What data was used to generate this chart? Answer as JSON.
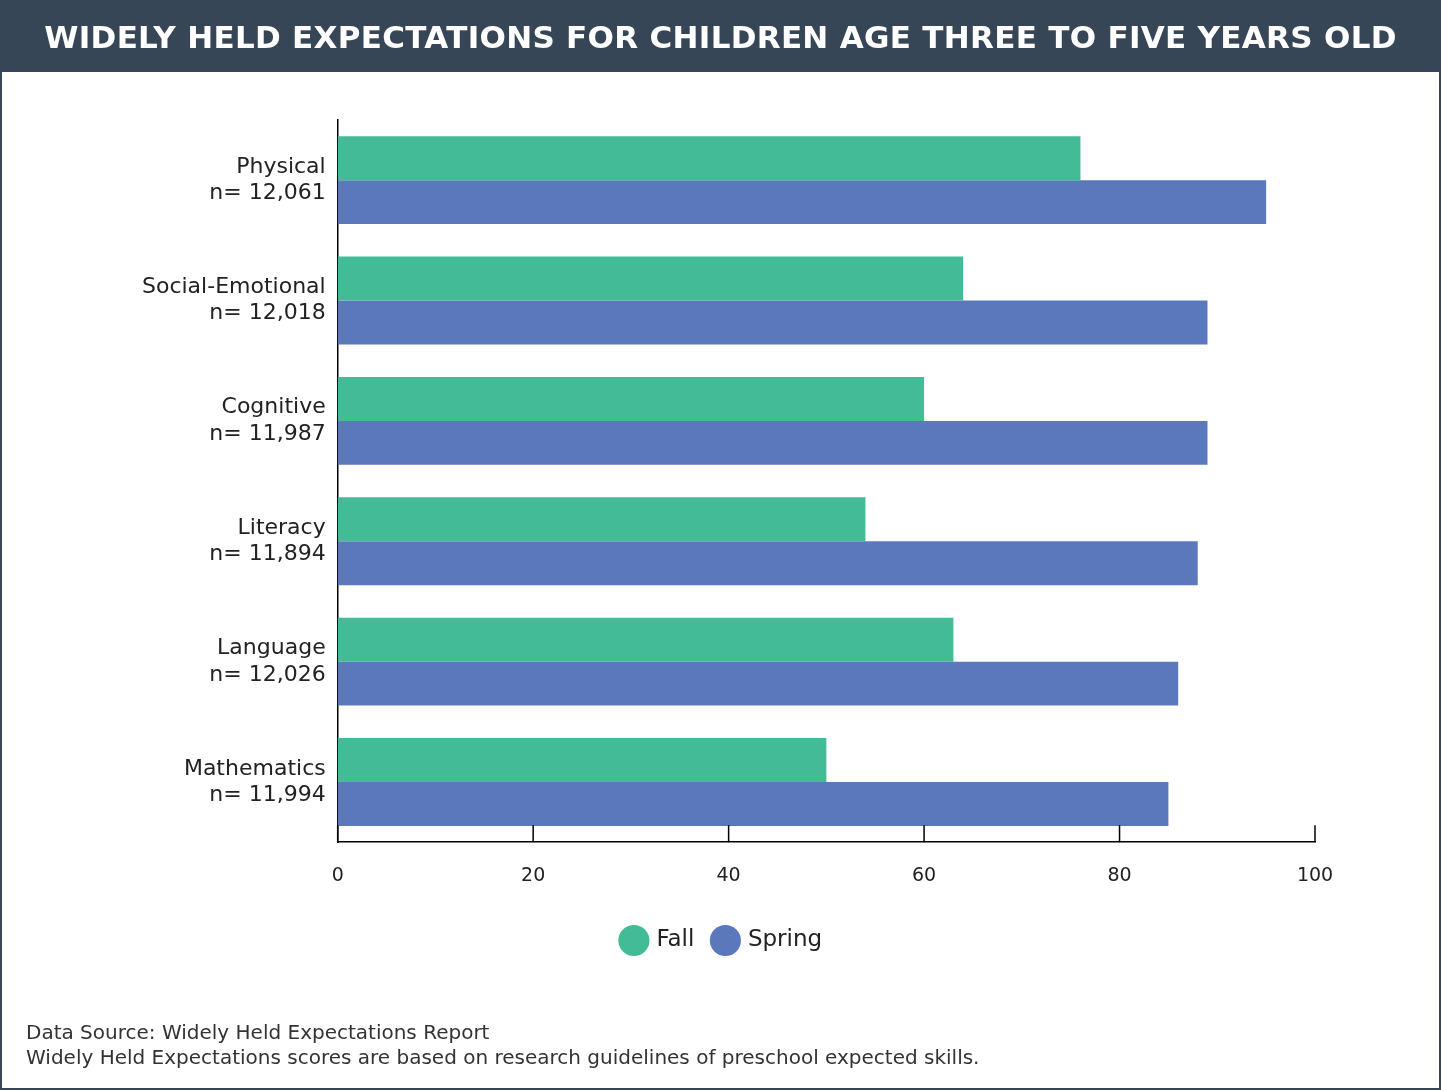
{
  "chart_data": {
    "type": "bar",
    "orientation": "horizontal",
    "title": "WIDELY HELD EXPECTATIONS FOR CHILDREN AGE THREE TO FIVE YEARS OLD",
    "categories": [
      "Physical\nn= 12,061",
      "Social-Emotional\nn= 12,018",
      "Cognitive\nn= 11,987",
      "Literacy\nn= 11,894",
      "Language\nn= 12,026",
      "Mathematics\nn= 11,994"
    ],
    "series": [
      {
        "name": "Fall",
        "color": "#43bb97",
        "values": [
          76,
          64,
          60,
          54,
          63,
          50
        ]
      },
      {
        "name": "Spring",
        "color": "#5b78bd",
        "values": [
          95,
          89,
          89,
          88,
          86,
          85
        ]
      }
    ],
    "xlim": [
      0,
      100
    ],
    "xticks": [
      0,
      20,
      40,
      60,
      80,
      100
    ],
    "grid": false,
    "legend": "bottom",
    "annotations": [
      "Data Source: Widely Held Expectations Report",
      "Widely Held Expectations scores are based on research guidelines of preschool expected skills."
    ]
  }
}
